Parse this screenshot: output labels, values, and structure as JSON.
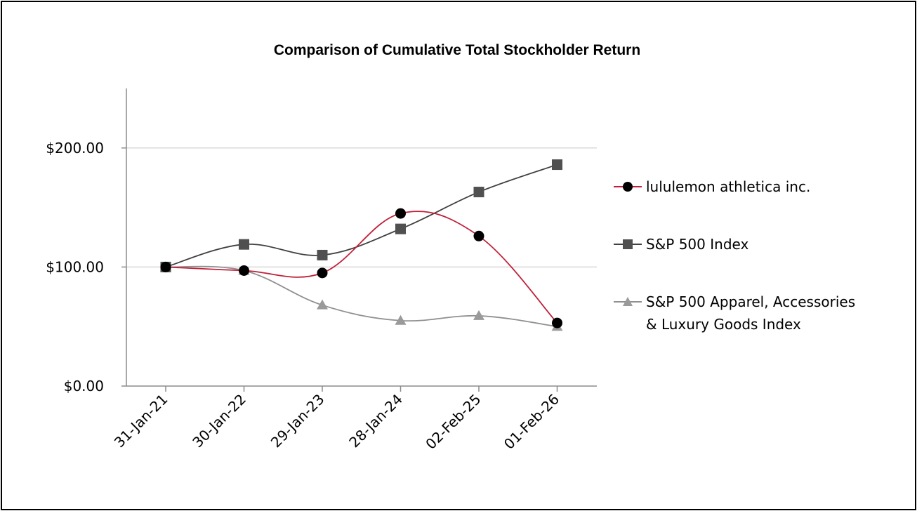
{
  "chart_data": {
    "type": "line",
    "title": "Comparison of Cumulative Total Stockholder Return",
    "xlabel": "",
    "ylabel": "",
    "categories": [
      "31-Jan-21",
      "30-Jan-22",
      "29-Jan-23",
      "28-Jan-24",
      "02-Feb-25",
      "01-Feb-26"
    ],
    "ylim": [
      0,
      250
    ],
    "yticks": [
      0,
      100,
      200
    ],
    "ytick_labels": [
      "$0.00",
      "$100.00",
      "$200.00"
    ],
    "grid": "horizontal",
    "legend_position": "right",
    "series": [
      {
        "name": "lululemon athletica inc.",
        "values": [
          100,
          97,
          95,
          145,
          126,
          53
        ],
        "color": "#c0203a",
        "marker": "circle",
        "marker_color": "#000000"
      },
      {
        "name": "S&P 500 Index",
        "values": [
          100,
          119,
          110,
          132,
          163,
          186
        ],
        "color": "#404040",
        "marker": "square",
        "marker_color": "#505050"
      },
      {
        "name": "S&P 500 Apparel, Accessories & Luxury Goods Index",
        "name_lines": [
          "S&P 500 Apparel, Accessories",
          "& Luxury Goods Index"
        ],
        "values": [
          100,
          97,
          68,
          55,
          59,
          50
        ],
        "color": "#909090",
        "marker": "triangle",
        "marker_color": "#9a9a9a"
      }
    ]
  }
}
